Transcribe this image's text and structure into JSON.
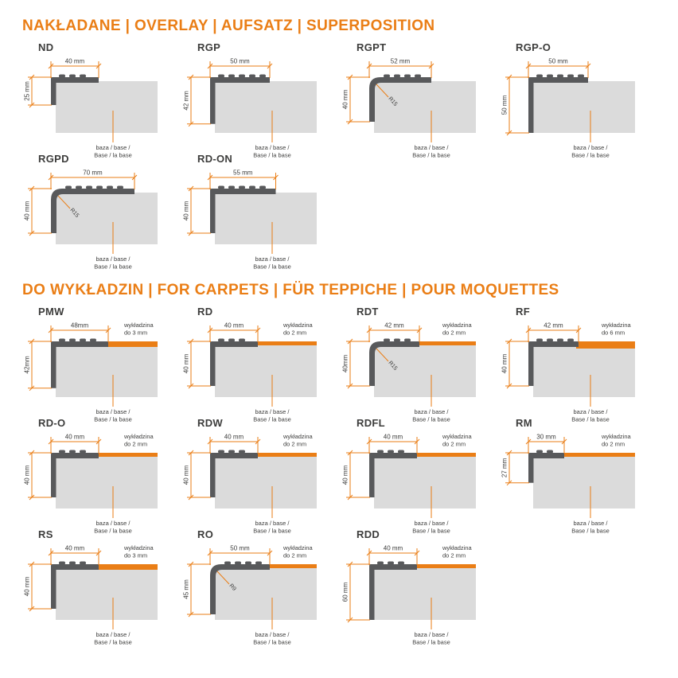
{
  "colors": {
    "accent": "#EA7E16",
    "profile": "#58595B",
    "base_fill": "#DBDBDB",
    "text": "#3C3C3B",
    "background": "#FFFFFF"
  },
  "labels": {
    "base_line1": "baza / base /",
    "base_line2": "Base / la base",
    "carpet_line1": "wykładzina"
  },
  "sections": [
    {
      "title": "NAKŁADANE | OVERLAY | AUFSATZ | SUPERPOSITION",
      "profiles": [
        {
          "name": "ND",
          "width_label": "40 mm",
          "height_label": "25 mm",
          "width_mm": 40,
          "height_mm": 25,
          "corner": "square"
        },
        {
          "name": "RGP",
          "width_label": "50 mm",
          "height_label": "42 mm",
          "width_mm": 50,
          "height_mm": 42,
          "corner": "square"
        },
        {
          "name": "RGPT",
          "width_label": "52 mm",
          "height_label": "40 mm",
          "width_mm": 52,
          "height_mm": 40,
          "corner": "rounded",
          "radius_label": "R15"
        },
        {
          "name": "RGP-O",
          "width_label": "50 mm",
          "height_label": "50 mm",
          "width_mm": 50,
          "height_mm": 50,
          "corner": "square"
        },
        {
          "name": "RGPD",
          "width_label": "70 mm",
          "height_label": "40 mm",
          "width_mm": 70,
          "height_mm": 40,
          "corner": "rounded",
          "radius_label": "R15"
        },
        {
          "name": "RD-ON",
          "width_label": "55 mm",
          "height_label": "40 mm",
          "width_mm": 55,
          "height_mm": 40,
          "corner": "square"
        }
      ]
    },
    {
      "title": "DO WYKŁADZIN | FOR CARPETS | FÜR TEPPICHE | POUR MOQUETTES",
      "profiles": [
        {
          "name": "PMW",
          "width_label": "48mm",
          "height_label": "42mm",
          "width_mm": 48,
          "height_mm": 42,
          "corner": "square",
          "carpet_mm": 3,
          "carpet_label": "do 3 mm"
        },
        {
          "name": "RD",
          "width_label": "40 mm",
          "height_label": "40 mm",
          "width_mm": 40,
          "height_mm": 40,
          "corner": "square",
          "carpet_mm": 2,
          "carpet_label": "do 2 mm"
        },
        {
          "name": "RDT",
          "width_label": "42 mm",
          "height_label": "40mm",
          "width_mm": 42,
          "height_mm": 40,
          "corner": "rounded",
          "radius_label": "R15",
          "carpet_mm": 2,
          "carpet_label": "do 2 mm"
        },
        {
          "name": "RF",
          "width_label": "42 mm",
          "height_label": "40 mm",
          "width_mm": 42,
          "height_mm": 40,
          "corner": "square",
          "carpet_mm": 6,
          "carpet_label": "do 6 mm"
        },
        {
          "name": "RD-O",
          "width_label": "40 mm",
          "height_label": "40 mm",
          "width_mm": 40,
          "height_mm": 40,
          "corner": "square",
          "carpet_mm": 2,
          "carpet_label": "do 2 mm"
        },
        {
          "name": "RDW",
          "width_label": "40 mm",
          "height_label": "40 mm",
          "width_mm": 40,
          "height_mm": 40,
          "corner": "square",
          "carpet_mm": 2,
          "carpet_label": "do 2 mm"
        },
        {
          "name": "RDFL",
          "width_label": "40 mm",
          "height_label": "40 mm",
          "width_mm": 40,
          "height_mm": 40,
          "corner": "square",
          "carpet_mm": 2,
          "carpet_label": "do 2 mm"
        },
        {
          "name": "RM",
          "width_label": "30 mm",
          "height_label": "27 mm",
          "width_mm": 30,
          "height_mm": 27,
          "corner": "square",
          "carpet_mm": 2,
          "carpet_label": "do 2 mm"
        },
        {
          "name": "RS",
          "width_label": "40 mm",
          "height_label": "40 mm",
          "width_mm": 40,
          "height_mm": 40,
          "corner": "square",
          "carpet_mm": 3,
          "carpet_label": "do 3 mm"
        },
        {
          "name": "RO",
          "width_label": "50 mm",
          "height_label": "45 mm",
          "width_mm": 50,
          "height_mm": 45,
          "corner": "rounded",
          "radius_label": "R9",
          "carpet_mm": 2,
          "carpet_label": "do 2 mm"
        },
        {
          "name": "RDD",
          "width_label": "40 mm",
          "height_label": "60 mm",
          "width_mm": 40,
          "height_mm": 60,
          "corner": "square",
          "carpet_mm": 2,
          "carpet_label": "do 2 mm"
        }
      ]
    }
  ]
}
